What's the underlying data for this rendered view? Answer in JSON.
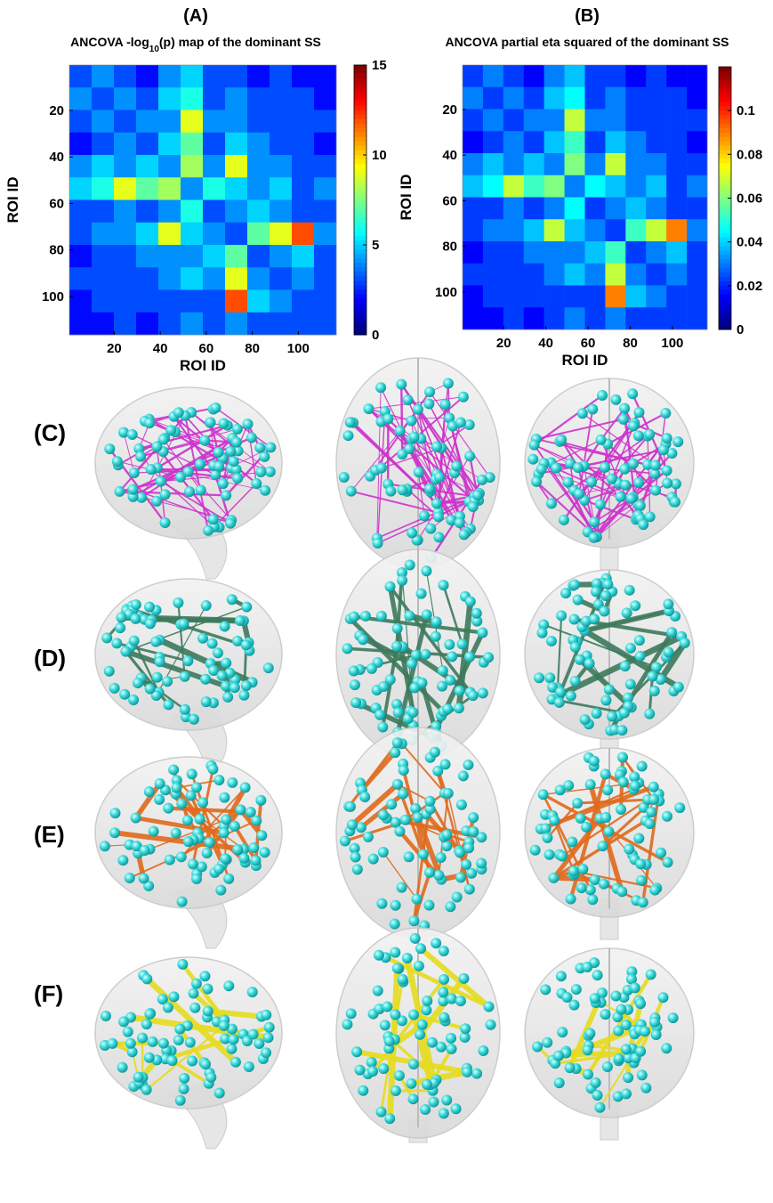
{
  "chart_data": [
    {
      "type": "heatmap",
      "title": "(A)",
      "subtitle": {
        "before": "ANCOVA  -log",
        "sub": "10",
        "after": "(p)  map of the dominant SS"
      },
      "x_label": "ROI ID",
      "y_label": "ROI ID",
      "xlim": [
        0.5,
        116.5
      ],
      "ylim": [
        0.5,
        116.5
      ],
      "y_reversed": true,
      "xticks": [
        20,
        40,
        60,
        80,
        100
      ],
      "yticks": [
        20,
        40,
        60,
        80,
        100
      ],
      "colormap": "jet",
      "clim": [
        0,
        15
      ],
      "cticks": [
        0,
        5,
        10,
        15
      ],
      "matrix": [
        [
          3,
          4,
          3,
          2,
          4,
          5,
          3,
          3,
          2,
          3,
          2,
          2
        ],
        [
          4,
          3,
          4,
          3,
          5,
          6,
          3,
          4,
          3,
          3,
          3,
          2
        ],
        [
          3,
          4,
          3,
          4,
          4,
          9,
          4,
          4,
          3,
          3,
          3,
          3
        ],
        [
          2,
          3,
          4,
          3,
          5,
          7,
          3,
          5,
          4,
          3,
          3,
          2
        ],
        [
          4,
          5,
          4,
          5,
          4,
          8,
          4,
          9,
          4,
          4,
          3,
          3
        ],
        [
          5,
          6,
          9,
          7,
          8,
          4,
          6,
          5,
          4,
          5,
          3,
          4
        ],
        [
          3,
          3,
          4,
          3,
          4,
          6,
          3,
          4,
          5,
          4,
          3,
          3
        ],
        [
          3,
          4,
          4,
          5,
          9,
          5,
          4,
          3,
          7,
          9,
          12,
          4
        ],
        [
          2,
          3,
          3,
          4,
          4,
          4,
          5,
          7,
          3,
          4,
          5,
          3
        ],
        [
          3,
          3,
          3,
          3,
          4,
          5,
          4,
          9,
          4,
          3,
          4,
          3
        ],
        [
          2,
          3,
          3,
          3,
          3,
          3,
          3,
          12,
          5,
          4,
          3,
          3
        ],
        [
          2,
          2,
          3,
          2,
          3,
          4,
          3,
          4,
          3,
          3,
          3,
          3
        ]
      ]
    },
    {
      "type": "heatmap",
      "title": "(B)",
      "subtitle": {
        "before": "ANCOVA partial eta squared of the dominant SS"
      },
      "x_label": "ROI ID",
      "y_label": "ROI ID",
      "xlim": [
        0.5,
        116.5
      ],
      "ylim": [
        0.5,
        116.5
      ],
      "y_reversed": true,
      "xticks": [
        20,
        40,
        60,
        80,
        100
      ],
      "yticks": [
        20,
        40,
        60,
        80,
        100
      ],
      "colormap": "jet",
      "clim": [
        0,
        0.12
      ],
      "cticks": [
        0,
        0.02,
        0.04,
        0.06,
        0.08,
        0.1
      ],
      "matrix": [
        [
          0.022,
          0.03,
          0.022,
          0.015,
          0.03,
          0.038,
          0.022,
          0.022,
          0.015,
          0.022,
          0.015,
          0.015
        ],
        [
          0.03,
          0.022,
          0.03,
          0.022,
          0.038,
          0.045,
          0.022,
          0.03,
          0.022,
          0.022,
          0.022,
          0.015
        ],
        [
          0.022,
          0.03,
          0.022,
          0.03,
          0.03,
          0.068,
          0.03,
          0.03,
          0.022,
          0.022,
          0.022,
          0.022
        ],
        [
          0.015,
          0.022,
          0.03,
          0.022,
          0.038,
          0.052,
          0.022,
          0.038,
          0.03,
          0.022,
          0.022,
          0.015
        ],
        [
          0.03,
          0.038,
          0.03,
          0.038,
          0.03,
          0.06,
          0.03,
          0.068,
          0.03,
          0.03,
          0.022,
          0.022
        ],
        [
          0.038,
          0.045,
          0.068,
          0.052,
          0.06,
          0.03,
          0.045,
          0.038,
          0.03,
          0.038,
          0.022,
          0.03
        ],
        [
          0.022,
          0.022,
          0.03,
          0.022,
          0.03,
          0.045,
          0.022,
          0.03,
          0.038,
          0.03,
          0.022,
          0.022
        ],
        [
          0.022,
          0.03,
          0.03,
          0.038,
          0.068,
          0.038,
          0.03,
          0.022,
          0.052,
          0.068,
          0.09,
          0.03
        ],
        [
          0.015,
          0.022,
          0.022,
          0.03,
          0.03,
          0.03,
          0.038,
          0.052,
          0.022,
          0.03,
          0.038,
          0.022
        ],
        [
          0.022,
          0.022,
          0.022,
          0.022,
          0.03,
          0.038,
          0.03,
          0.068,
          0.03,
          0.022,
          0.03,
          0.022
        ],
        [
          0.015,
          0.022,
          0.022,
          0.022,
          0.022,
          0.022,
          0.022,
          0.09,
          0.038,
          0.03,
          0.022,
          0.022
        ],
        [
          0.015,
          0.015,
          0.022,
          0.015,
          0.022,
          0.03,
          0.022,
          0.03,
          0.022,
          0.022,
          0.022,
          0.022
        ]
      ]
    }
  ],
  "brain_rows": [
    {
      "label": "(C)",
      "edge_color": "#cc33cc"
    },
    {
      "label": "(D)",
      "edge_color": "#3d7a5c"
    },
    {
      "label": "(E)",
      "edge_color": "#e06a1c"
    },
    {
      "label": "(F)",
      "edge_color": "#e6dc1e"
    }
  ]
}
